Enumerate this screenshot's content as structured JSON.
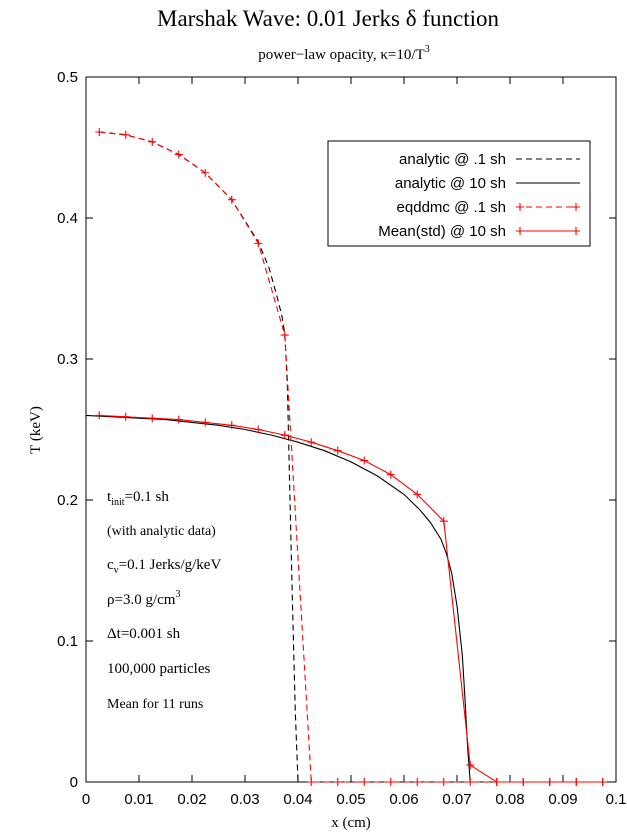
{
  "chart_data": {
    "type": "line",
    "title": "Marshak Wave: 0.01 Jerks δ function",
    "subtitle": "power−law opacity, κ=10/T³",
    "xlabel": "x (cm)",
    "ylabel": "T (keV)",
    "xlim": [
      0,
      0.1
    ],
    "ylim": [
      0,
      0.5
    ],
    "x_ticks": [
      "0",
      "0.01",
      "0.02",
      "0.03",
      "0.04",
      "0.05",
      "0.06",
      "0.07",
      "0.08",
      "0.09",
      "0.1"
    ],
    "y_ticks": [
      "0",
      "0.1",
      "0.2",
      "0.3",
      "0.4",
      "0.5"
    ],
    "legend_position": "top-right",
    "series": [
      {
        "name": "analytic @ .1 sh",
        "color": "#000000",
        "style": "dashed",
        "x": [
          0.0025,
          0.0075,
          0.0125,
          0.0175,
          0.0225,
          0.0275,
          0.0325,
          0.0345,
          0.036,
          0.037,
          0.0375,
          0.038,
          0.0385,
          0.039,
          0.0395,
          0.04,
          0.1
        ],
        "y": [
          0.461,
          0.459,
          0.454,
          0.445,
          0.432,
          0.413,
          0.383,
          0.365,
          0.345,
          0.33,
          0.318,
          0.28,
          0.2,
          0.12,
          0.05,
          0.0,
          0.0
        ]
      },
      {
        "name": "analytic @ 10 sh",
        "color": "#000000",
        "style": "solid",
        "x": [
          0.0,
          0.005,
          0.01,
          0.015,
          0.02,
          0.025,
          0.03,
          0.035,
          0.04,
          0.045,
          0.05,
          0.055,
          0.06,
          0.063,
          0.065,
          0.067,
          0.068,
          0.069,
          0.07,
          0.071,
          0.0715,
          0.072,
          0.0725,
          0.1
        ],
        "y": [
          0.26,
          0.259,
          0.258,
          0.257,
          0.255,
          0.253,
          0.25,
          0.246,
          0.241,
          0.235,
          0.227,
          0.217,
          0.204,
          0.193,
          0.184,
          0.172,
          0.162,
          0.148,
          0.125,
          0.09,
          0.06,
          0.025,
          0.0,
          0.0
        ]
      },
      {
        "name": "eqddmc @ .1 sh",
        "color": "#ff0000",
        "style": "dashed-markers",
        "x": [
          0.0025,
          0.0075,
          0.0125,
          0.0175,
          0.0225,
          0.0275,
          0.0325,
          0.0375,
          0.0425,
          0.0475,
          0.0525,
          0.0575,
          0.0625,
          0.0675,
          0.0725,
          0.0775,
          0.0825,
          0.0875,
          0.0925,
          0.0975
        ],
        "y": [
          0.461,
          0.459,
          0.454,
          0.445,
          0.432,
          0.413,
          0.382,
          0.317,
          0.0,
          0.0,
          0.0,
          0.0,
          0.0,
          0.0,
          0.0,
          0.0,
          0.0,
          0.0,
          0.0,
          0.0
        ]
      },
      {
        "name": "Mean(std) @ 10 sh",
        "color": "#ff0000",
        "style": "solid-markers",
        "x": [
          0.0025,
          0.0075,
          0.0125,
          0.0175,
          0.0225,
          0.0275,
          0.0325,
          0.0375,
          0.0425,
          0.0475,
          0.0525,
          0.0575,
          0.0625,
          0.0675,
          0.0725,
          0.0775,
          0.0825,
          0.0875,
          0.0925,
          0.0975
        ],
        "y": [
          0.26,
          0.259,
          0.258,
          0.257,
          0.255,
          0.253,
          0.25,
          0.246,
          0.241,
          0.235,
          0.228,
          0.218,
          0.204,
          0.185,
          0.012,
          0.0,
          0.0,
          0.0,
          0.0,
          0.0
        ]
      }
    ],
    "annotations": [
      {
        "key": "tinit",
        "base": "t",
        "sub": "init",
        "rest": "=0.1 sh"
      },
      {
        "key": "note",
        "base": "(with analytic data)",
        "sub": "",
        "rest": ""
      },
      {
        "key": "cv",
        "base": "c",
        "sub": "v",
        "rest": "=0.1 Jerks/g/keV"
      },
      {
        "key": "rho",
        "base": "ρ=3.0 g/cm",
        "sup": "3",
        "rest": ""
      },
      {
        "key": "dt",
        "base": "Δt=0.001 sh",
        "sub": "",
        "rest": ""
      },
      {
        "key": "particles",
        "base": "100,000 particles",
        "sub": "",
        "rest": ""
      },
      {
        "key": "runs",
        "base": "Mean for 11 runs",
        "sub": "",
        "rest": ""
      }
    ]
  }
}
